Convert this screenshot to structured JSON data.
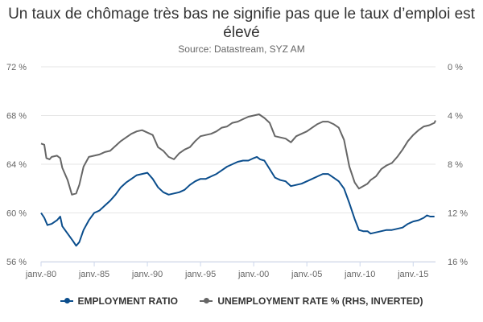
{
  "title": "Un taux de chômage très bas ne signifie pas que le taux d’emploi est élevé",
  "subtitle": "Source: Datastream, SYZ AM",
  "legend": {
    "employment": "EMPLOYMENT RATIO",
    "unemployment": "UNEMPLOYMENT RATE % (RHS, INVERTED)"
  },
  "colors": {
    "employment": "#0a4d8c",
    "unemployment": "#666666",
    "grid": "#e6e6e6"
  },
  "chart_data": {
    "type": "line",
    "x_ticks": [
      {
        "year": 1980,
        "label": "janv.-80"
      },
      {
        "year": 1985,
        "label": "janv.-85"
      },
      {
        "year": 1990,
        "label": "janv.-90"
      },
      {
        "year": 1995,
        "label": "janv.-95"
      },
      {
        "year": 2000,
        "label": "janv.-00"
      },
      {
        "year": 2005,
        "label": "janv.-05"
      },
      {
        "year": 2010,
        "label": "janv.-10"
      },
      {
        "year": 2015,
        "label": "janv.-15"
      }
    ],
    "xlim": [
      1980,
      2017.1
    ],
    "y_left": {
      "ticks": [
        "72 %",
        "68 %",
        "64 %",
        "60 %",
        "56 %"
      ],
      "values": [
        72,
        68,
        64,
        60,
        56
      ],
      "lim": [
        56,
        72
      ]
    },
    "y_right": {
      "ticks": [
        "0 %",
        "4 %",
        "8 %",
        "12 %",
        "16 %"
      ],
      "values": [
        0,
        4,
        8,
        12,
        16
      ],
      "lim": [
        0,
        16
      ],
      "inverted": true
    },
    "grid": "horizontal",
    "legend_position": "bottom",
    "series": [
      {
        "name": "EMPLOYMENT RATIO",
        "axis": "left",
        "points": [
          [
            1980.0,
            60.0
          ],
          [
            1980.3,
            59.6
          ],
          [
            1980.6,
            59.0
          ],
          [
            1981.0,
            59.1
          ],
          [
            1981.5,
            59.4
          ],
          [
            1981.8,
            59.7
          ],
          [
            1982.0,
            58.9
          ],
          [
            1982.5,
            58.3
          ],
          [
            1983.0,
            57.7
          ],
          [
            1983.3,
            57.3
          ],
          [
            1983.6,
            57.6
          ],
          [
            1984.0,
            58.6
          ],
          [
            1984.5,
            59.4
          ],
          [
            1985.0,
            60.0
          ],
          [
            1985.5,
            60.2
          ],
          [
            1986.0,
            60.6
          ],
          [
            1986.5,
            61.0
          ],
          [
            1987.0,
            61.5
          ],
          [
            1987.5,
            62.1
          ],
          [
            1988.0,
            62.5
          ],
          [
            1988.5,
            62.8
          ],
          [
            1989.0,
            63.1
          ],
          [
            1989.5,
            63.2
          ],
          [
            1990.0,
            63.3
          ],
          [
            1990.5,
            62.8
          ],
          [
            1991.0,
            62.1
          ],
          [
            1991.5,
            61.7
          ],
          [
            1992.0,
            61.5
          ],
          [
            1992.5,
            61.6
          ],
          [
            1993.0,
            61.7
          ],
          [
            1993.5,
            61.9
          ],
          [
            1994.0,
            62.3
          ],
          [
            1994.5,
            62.6
          ],
          [
            1995.0,
            62.8
          ],
          [
            1995.5,
            62.8
          ],
          [
            1996.0,
            63.0
          ],
          [
            1996.5,
            63.2
          ],
          [
            1997.0,
            63.5
          ],
          [
            1997.5,
            63.8
          ],
          [
            1998.0,
            64.0
          ],
          [
            1998.5,
            64.2
          ],
          [
            1999.0,
            64.3
          ],
          [
            1999.5,
            64.3
          ],
          [
            2000.0,
            64.5
          ],
          [
            2000.3,
            64.6
          ],
          [
            2000.6,
            64.4
          ],
          [
            2001.0,
            64.3
          ],
          [
            2001.5,
            63.6
          ],
          [
            2002.0,
            62.9
          ],
          [
            2002.5,
            62.7
          ],
          [
            2003.0,
            62.6
          ],
          [
            2003.5,
            62.2
          ],
          [
            2004.0,
            62.3
          ],
          [
            2004.5,
            62.4
          ],
          [
            2005.0,
            62.6
          ],
          [
            2005.5,
            62.8
          ],
          [
            2006.0,
            63.0
          ],
          [
            2006.5,
            63.2
          ],
          [
            2007.0,
            63.2
          ],
          [
            2007.5,
            62.9
          ],
          [
            2008.0,
            62.6
          ],
          [
            2008.5,
            62.0
          ],
          [
            2009.0,
            60.8
          ],
          [
            2009.5,
            59.5
          ],
          [
            2009.9,
            58.6
          ],
          [
            2010.3,
            58.5
          ],
          [
            2010.7,
            58.5
          ],
          [
            2011.0,
            58.3
          ],
          [
            2011.5,
            58.4
          ],
          [
            2012.0,
            58.5
          ],
          [
            2012.5,
            58.6
          ],
          [
            2013.0,
            58.6
          ],
          [
            2013.5,
            58.7
          ],
          [
            2014.0,
            58.8
          ],
          [
            2014.5,
            59.1
          ],
          [
            2015.0,
            59.3
          ],
          [
            2015.5,
            59.4
          ],
          [
            2016.0,
            59.6
          ],
          [
            2016.3,
            59.8
          ],
          [
            2016.6,
            59.7
          ],
          [
            2017.0,
            59.7
          ]
        ]
      },
      {
        "name": "UNEMPLOYMENT RATE % (RHS, INVERTED)",
        "axis": "right",
        "points": [
          [
            1980.0,
            6.3
          ],
          [
            1980.3,
            6.4
          ],
          [
            1980.5,
            7.5
          ],
          [
            1980.8,
            7.6
          ],
          [
            1981.0,
            7.4
          ],
          [
            1981.5,
            7.3
          ],
          [
            1981.8,
            7.5
          ],
          [
            1982.0,
            8.3
          ],
          [
            1982.5,
            9.3
          ],
          [
            1982.9,
            10.5
          ],
          [
            1983.3,
            10.4
          ],
          [
            1983.6,
            9.7
          ],
          [
            1984.0,
            8.2
          ],
          [
            1984.5,
            7.4
          ],
          [
            1985.0,
            7.3
          ],
          [
            1985.5,
            7.2
          ],
          [
            1986.0,
            7.0
          ],
          [
            1986.5,
            6.9
          ],
          [
            1987.0,
            6.5
          ],
          [
            1987.5,
            6.1
          ],
          [
            1988.0,
            5.8
          ],
          [
            1988.5,
            5.5
          ],
          [
            1989.0,
            5.3
          ],
          [
            1989.5,
            5.2
          ],
          [
            1990.0,
            5.4
          ],
          [
            1990.5,
            5.6
          ],
          [
            1991.0,
            6.6
          ],
          [
            1991.5,
            6.9
          ],
          [
            1992.0,
            7.4
          ],
          [
            1992.5,
            7.6
          ],
          [
            1993.0,
            7.1
          ],
          [
            1993.5,
            6.8
          ],
          [
            1994.0,
            6.6
          ],
          [
            1994.5,
            6.1
          ],
          [
            1995.0,
            5.7
          ],
          [
            1995.5,
            5.6
          ],
          [
            1996.0,
            5.5
          ],
          [
            1996.5,
            5.3
          ],
          [
            1997.0,
            5.0
          ],
          [
            1997.5,
            4.9
          ],
          [
            1998.0,
            4.6
          ],
          [
            1998.5,
            4.5
          ],
          [
            1999.0,
            4.3
          ],
          [
            1999.5,
            4.1
          ],
          [
            2000.0,
            4.0
          ],
          [
            2000.5,
            3.9
          ],
          [
            2001.0,
            4.2
          ],
          [
            2001.5,
            4.6
          ],
          [
            2002.0,
            5.7
          ],
          [
            2002.5,
            5.8
          ],
          [
            2003.0,
            5.9
          ],
          [
            2003.5,
            6.2
          ],
          [
            2004.0,
            5.7
          ],
          [
            2004.5,
            5.5
          ],
          [
            2005.0,
            5.3
          ],
          [
            2005.5,
            5.0
          ],
          [
            2006.0,
            4.7
          ],
          [
            2006.5,
            4.5
          ],
          [
            2007.0,
            4.5
          ],
          [
            2007.5,
            4.7
          ],
          [
            2008.0,
            5.0
          ],
          [
            2008.5,
            6.0
          ],
          [
            2009.0,
            8.2
          ],
          [
            2009.5,
            9.5
          ],
          [
            2009.9,
            10.0
          ],
          [
            2010.3,
            9.8
          ],
          [
            2010.7,
            9.6
          ],
          [
            2011.0,
            9.3
          ],
          [
            2011.5,
            9.0
          ],
          [
            2012.0,
            8.4
          ],
          [
            2012.5,
            8.1
          ],
          [
            2013.0,
            7.9
          ],
          [
            2013.5,
            7.4
          ],
          [
            2014.0,
            6.8
          ],
          [
            2014.5,
            6.1
          ],
          [
            2015.0,
            5.6
          ],
          [
            2015.5,
            5.2
          ],
          [
            2016.0,
            4.9
          ],
          [
            2016.5,
            4.8
          ],
          [
            2017.0,
            4.6
          ],
          [
            2017.1,
            4.4
          ]
        ]
      }
    ]
  }
}
